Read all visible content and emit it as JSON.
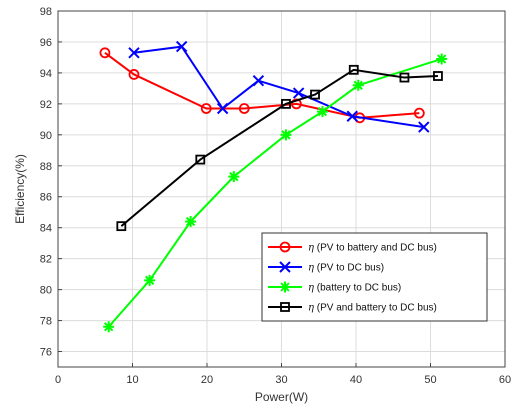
{
  "chart_data": {
    "type": "line",
    "title": "",
    "xlabel": "Power(W)",
    "ylabel": "Efficiency(%)",
    "xlim": [
      0,
      60
    ],
    "ylim": [
      75,
      98
    ],
    "xticks": [
      0,
      10,
      20,
      30,
      40,
      50,
      60
    ],
    "yticks": [
      76,
      78,
      80,
      82,
      84,
      86,
      88,
      90,
      92,
      94,
      96,
      98
    ],
    "grid": true,
    "legend_position": "center-right",
    "series": [
      {
        "name": "η (PV to battery and DC bus)",
        "greek": "η",
        "label_rest": " (PV to battery and DC bus)",
        "color": "#ff0000",
        "marker": "circle",
        "x": [
          6.3,
          10.2,
          19.9,
          25.0,
          32.0,
          40.5,
          48.5
        ],
        "y": [
          95.3,
          93.9,
          91.7,
          91.7,
          92.0,
          91.1,
          91.4
        ]
      },
      {
        "name": "η (PV to DC bus)",
        "greek": "η",
        "label_rest": " (PV to DC bus)",
        "color": "#0000ff",
        "marker": "x",
        "x": [
          10.2,
          16.6,
          22.1,
          26.9,
          32.3,
          39.5,
          49.1
        ],
        "y": [
          95.3,
          95.7,
          91.7,
          93.5,
          92.7,
          91.2,
          90.5
        ]
      },
      {
        "name": "η (battery to DC bus)",
        "greek": "η",
        "label_rest": " (battery to DC bus)",
        "color": "#00ff00",
        "marker": "star",
        "x": [
          6.8,
          12.3,
          17.8,
          23.6,
          30.6,
          35.5,
          40.3,
          51.5
        ],
        "y": [
          77.6,
          80.6,
          84.4,
          87.3,
          90.0,
          91.5,
          93.2,
          94.9
        ]
      },
      {
        "name": "η (PV and battery to DC bus)",
        "greek": "η",
        "label_rest": " (PV and battery to DC bus)",
        "color": "#000000",
        "marker": "square",
        "x": [
          8.5,
          19.1,
          30.6,
          34.5,
          39.7,
          46.5,
          51.0
        ],
        "y": [
          84.1,
          88.4,
          92.0,
          92.6,
          94.2,
          93.7,
          93.8
        ]
      }
    ]
  }
}
